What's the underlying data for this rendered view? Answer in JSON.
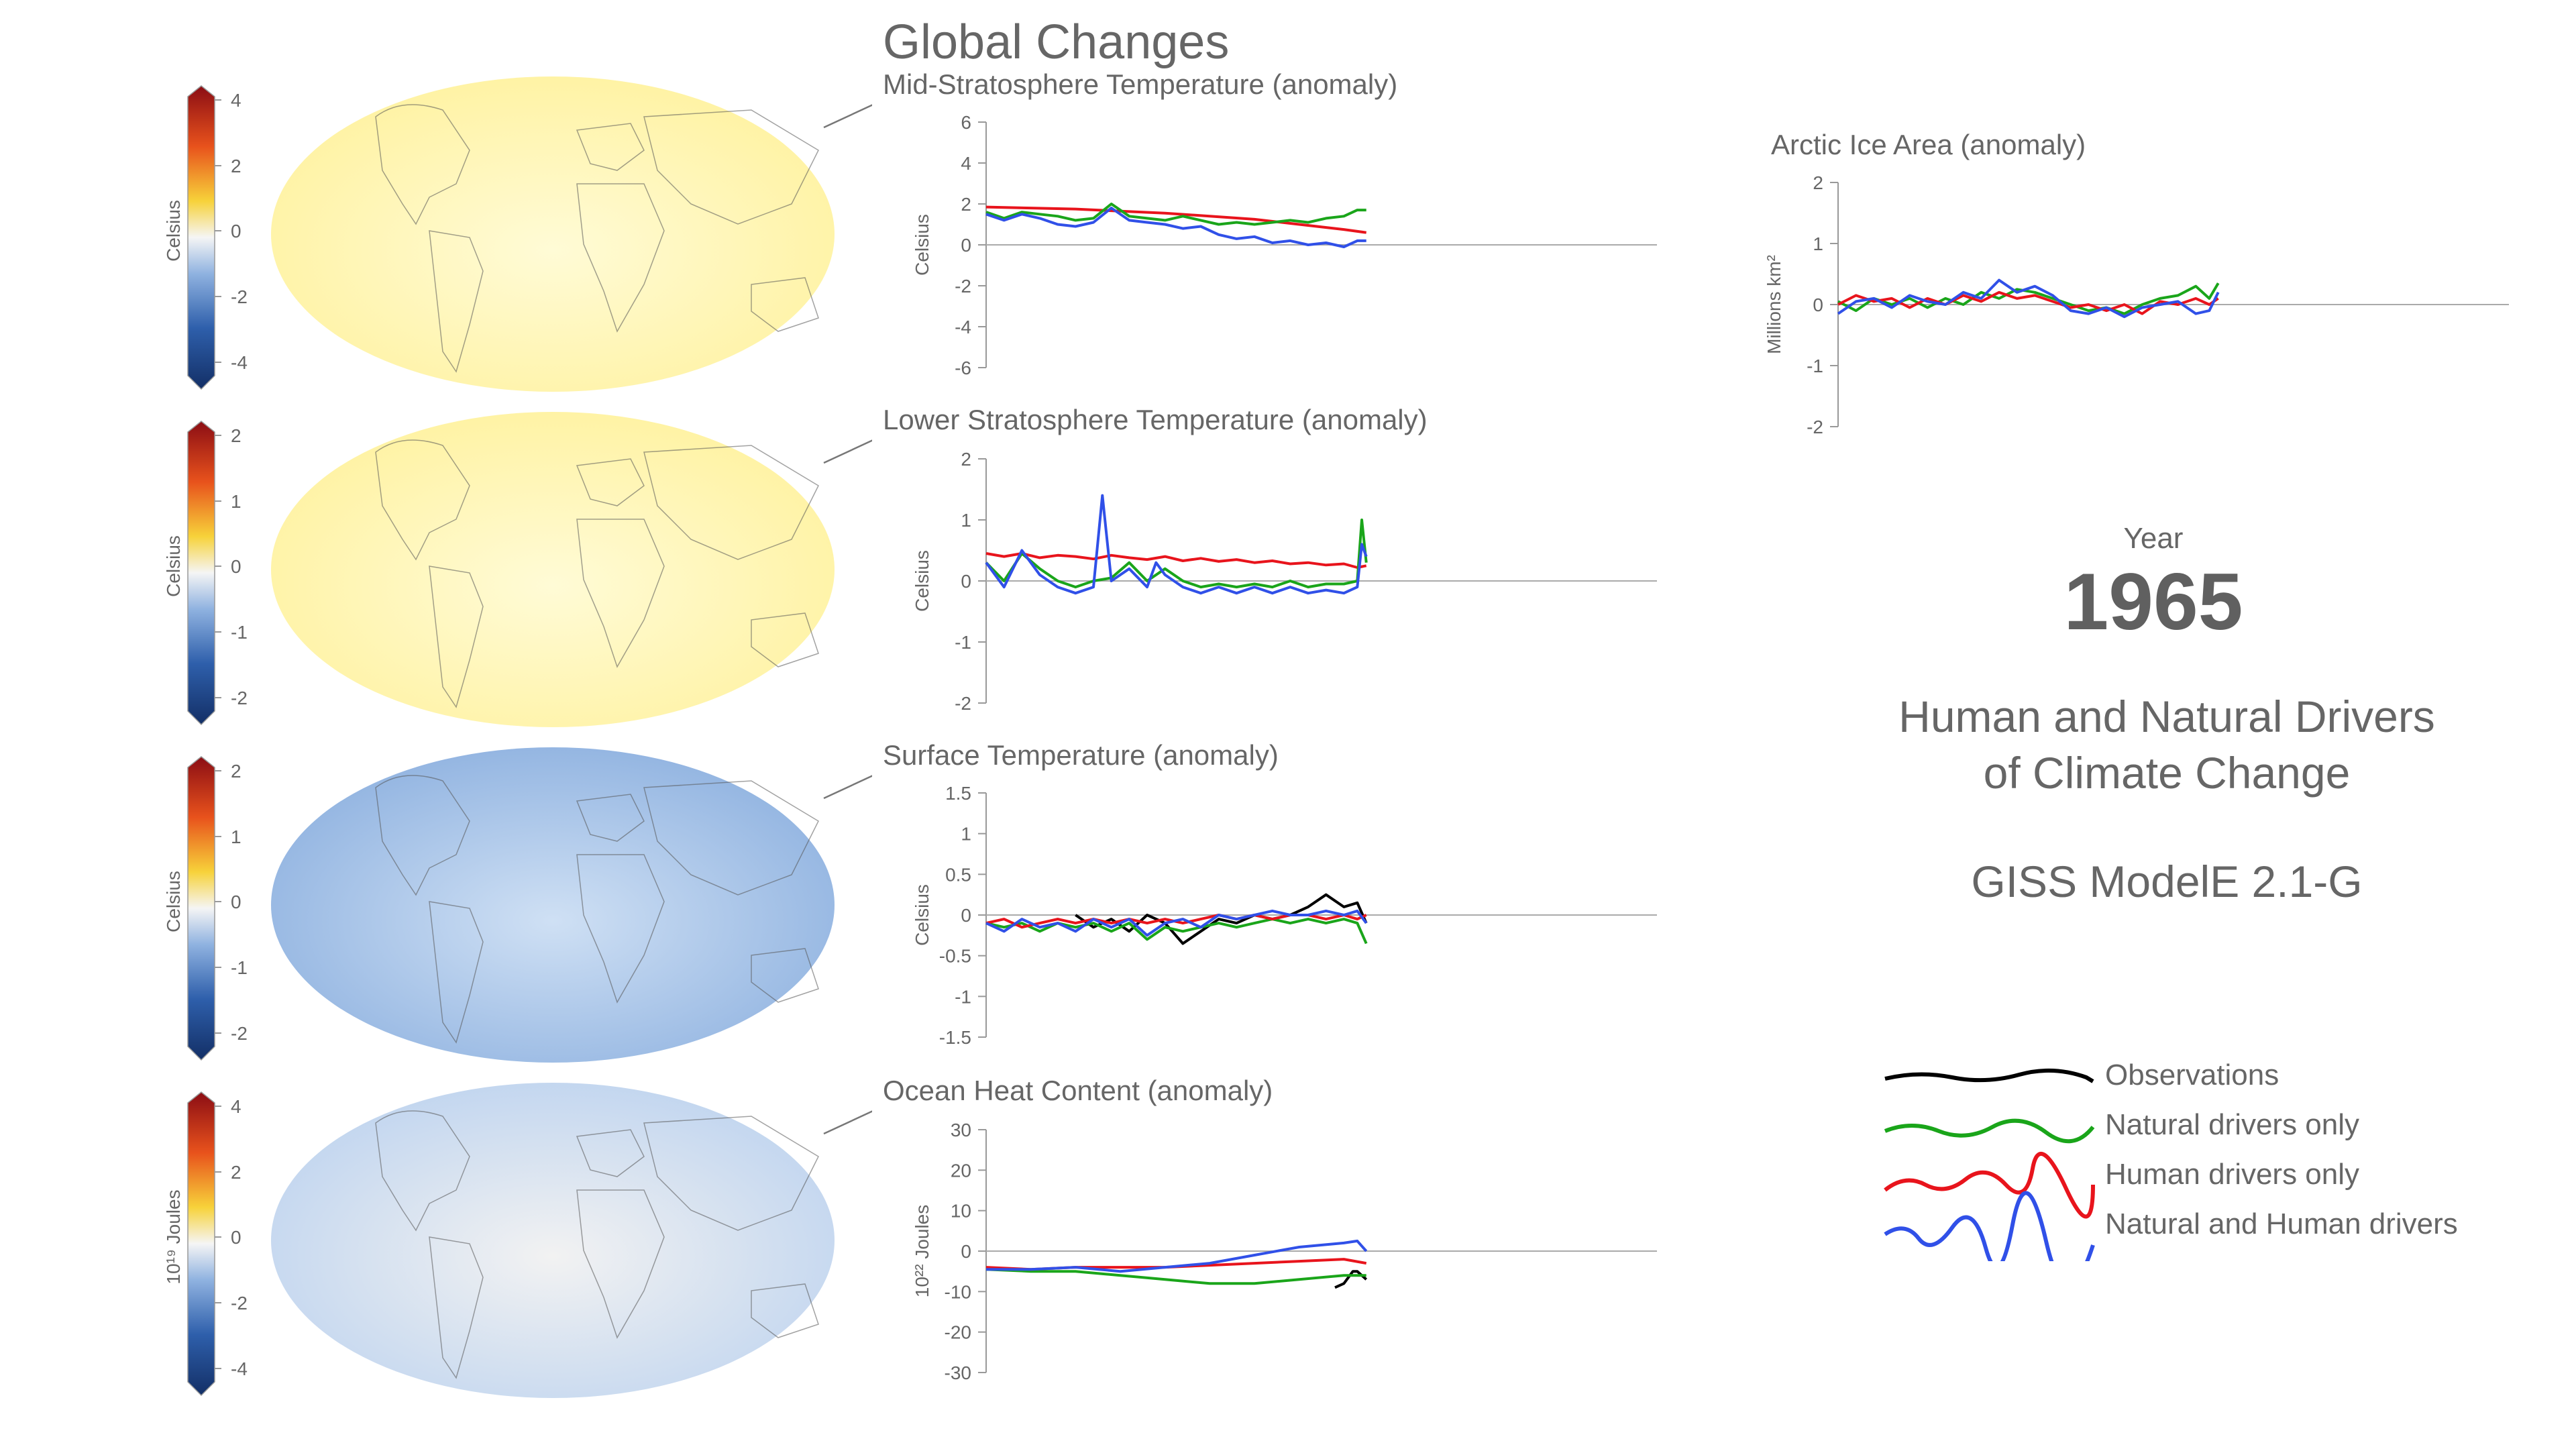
{
  "page_title": "Global Changes",
  "year_label": "Year",
  "year_value": "1965",
  "subtitle_line1": "Human and Natural Drivers",
  "subtitle_line2": "of Climate Change",
  "model_name": "GISS ModelE 2.1-G",
  "legend": [
    {
      "label": "Observations",
      "color": "#000000"
    },
    {
      "label": "Natural drivers only",
      "color": "#1aa51a"
    },
    {
      "label": "Human drivers only",
      "color": "#e8141c"
    },
    {
      "label": "Natural and Human drivers",
      "color": "#3050e8"
    }
  ],
  "maps": [
    {
      "colorbar_ticks": [
        "4",
        "2",
        "0",
        "-2",
        "-4"
      ],
      "colorbar_label": "Celsius",
      "anomaly": "warm"
    },
    {
      "colorbar_ticks": [
        "2",
        "1",
        "0",
        "-1",
        "-2"
      ],
      "colorbar_label": "Celsius",
      "anomaly": "warm"
    },
    {
      "colorbar_ticks": [
        "2",
        "1",
        "0",
        "-1",
        "-2"
      ],
      "colorbar_label": "Celsius",
      "anomaly": "cool"
    },
    {
      "colorbar_ticks": [
        "4",
        "2",
        "0",
        "-2",
        "-4"
      ],
      "colorbar_label": "10¹⁹ Joules",
      "anomaly": "mixed"
    }
  ],
  "chart_data": [
    {
      "type": "line",
      "title": "Mid-Stratosphere Temperature (anomaly)",
      "ylabel": "Celsius",
      "ylim": [
        -6,
        6
      ],
      "yticks": [
        "6",
        "4",
        "2",
        "0",
        "-2",
        "-4",
        "-6"
      ],
      "xlim": [
        1880,
        2030
      ],
      "series": [
        {
          "color": "#e8141c",
          "x": [
            1880,
            1890,
            1900,
            1910,
            1920,
            1930,
            1940,
            1950,
            1960,
            1965
          ],
          "y": [
            1.85,
            1.8,
            1.75,
            1.65,
            1.55,
            1.4,
            1.25,
            1.0,
            0.75,
            0.6
          ]
        },
        {
          "color": "#1aa51a",
          "x": [
            1880,
            1884,
            1888,
            1892,
            1896,
            1900,
            1904,
            1908,
            1912,
            1916,
            1920,
            1924,
            1928,
            1932,
            1936,
            1940,
            1944,
            1948,
            1952,
            1956,
            1960,
            1963,
            1965
          ],
          "y": [
            1.6,
            1.3,
            1.6,
            1.5,
            1.4,
            1.2,
            1.3,
            2.0,
            1.4,
            1.3,
            1.2,
            1.4,
            1.2,
            1.0,
            1.1,
            1.0,
            1.1,
            1.2,
            1.1,
            1.3,
            1.4,
            1.7,
            1.7
          ]
        },
        {
          "color": "#3050e8",
          "x": [
            1880,
            1884,
            1888,
            1892,
            1896,
            1900,
            1904,
            1908,
            1912,
            1916,
            1920,
            1924,
            1928,
            1932,
            1936,
            1940,
            1944,
            1948,
            1952,
            1956,
            1960,
            1963,
            1965
          ],
          "y": [
            1.5,
            1.2,
            1.5,
            1.3,
            1.0,
            0.9,
            1.1,
            1.8,
            1.2,
            1.1,
            1.0,
            0.8,
            0.9,
            0.5,
            0.3,
            0.4,
            0.1,
            0.2,
            0.0,
            0.1,
            -0.1,
            0.2,
            0.2
          ]
        }
      ]
    },
    {
      "type": "line",
      "title": "Lower Stratosphere Temperature (anomaly)",
      "ylabel": "Celsius",
      "ylim": [
        -2,
        2
      ],
      "yticks": [
        "2",
        "1",
        "0",
        "-1",
        "-2"
      ],
      "xlim": [
        1880,
        2030
      ],
      "series": [
        {
          "color": "#e8141c",
          "x": [
            1880,
            1884,
            1888,
            1892,
            1896,
            1900,
            1904,
            1908,
            1912,
            1916,
            1920,
            1924,
            1928,
            1932,
            1936,
            1940,
            1944,
            1948,
            1952,
            1956,
            1960,
            1963,
            1965
          ],
          "y": [
            0.45,
            0.4,
            0.45,
            0.38,
            0.42,
            0.4,
            0.36,
            0.42,
            0.38,
            0.35,
            0.4,
            0.33,
            0.37,
            0.32,
            0.35,
            0.3,
            0.33,
            0.28,
            0.3,
            0.26,
            0.28,
            0.22,
            0.25
          ]
        },
        {
          "color": "#1aa51a",
          "x": [
            1880,
            1884,
            1888,
            1892,
            1896,
            1900,
            1904,
            1908,
            1912,
            1916,
            1920,
            1924,
            1928,
            1932,
            1936,
            1940,
            1944,
            1948,
            1952,
            1956,
            1960,
            1963,
            1964,
            1965
          ],
          "y": [
            0.3,
            0.0,
            0.45,
            0.2,
            0.0,
            -0.1,
            0.0,
            0.05,
            0.3,
            0.0,
            0.2,
            0.0,
            -0.1,
            -0.05,
            -0.1,
            -0.05,
            -0.1,
            0.0,
            -0.1,
            -0.05,
            -0.05,
            0.0,
            1.0,
            0.3
          ]
        },
        {
          "color": "#3050e8",
          "x": [
            1880,
            1884,
            1888,
            1892,
            1896,
            1900,
            1904,
            1906,
            1908,
            1912,
            1916,
            1918,
            1920,
            1924,
            1928,
            1932,
            1936,
            1940,
            1944,
            1948,
            1952,
            1956,
            1960,
            1963,
            1964,
            1965
          ],
          "y": [
            0.3,
            -0.1,
            0.5,
            0.1,
            -0.1,
            -0.2,
            -0.1,
            1.4,
            0.0,
            0.2,
            -0.1,
            0.3,
            0.1,
            -0.1,
            -0.2,
            -0.1,
            -0.2,
            -0.1,
            -0.2,
            -0.1,
            -0.2,
            -0.15,
            -0.2,
            -0.1,
            0.6,
            0.4
          ]
        }
      ]
    },
    {
      "type": "line",
      "title": "Surface Temperature (anomaly)",
      "ylabel": "Celsius",
      "ylim": [
        -1.5,
        1.5
      ],
      "yticks": [
        "1.5",
        "1",
        "0.5",
        "0",
        "-0.5",
        "-1",
        "-1.5"
      ],
      "xlim": [
        1880,
        2030
      ],
      "series": [
        {
          "color": "#000000",
          "x": [
            1900,
            1904,
            1908,
            1912,
            1916,
            1920,
            1924,
            1928,
            1932,
            1936,
            1940,
            1944,
            1948,
            1952,
            1956,
            1960,
            1963,
            1965
          ],
          "y": [
            0.0,
            -0.15,
            -0.05,
            -0.2,
            0.0,
            -0.1,
            -0.35,
            -0.2,
            -0.05,
            -0.1,
            0.0,
            -0.05,
            0.0,
            0.1,
            0.25,
            0.1,
            0.15,
            -0.1
          ]
        },
        {
          "color": "#1aa51a",
          "x": [
            1880,
            1884,
            1888,
            1892,
            1896,
            1900,
            1904,
            1908,
            1912,
            1916,
            1920,
            1924,
            1928,
            1932,
            1936,
            1940,
            1944,
            1948,
            1952,
            1956,
            1960,
            1963,
            1965
          ],
          "y": [
            -0.1,
            -0.15,
            -0.1,
            -0.2,
            -0.1,
            -0.15,
            -0.1,
            -0.2,
            -0.1,
            -0.3,
            -0.15,
            -0.2,
            -0.15,
            -0.1,
            -0.15,
            -0.1,
            -0.05,
            -0.1,
            -0.05,
            -0.1,
            -0.05,
            -0.1,
            -0.35
          ]
        },
        {
          "color": "#e8141c",
          "x": [
            1880,
            1884,
            1888,
            1892,
            1896,
            1900,
            1904,
            1908,
            1912,
            1916,
            1920,
            1924,
            1928,
            1932,
            1936,
            1940,
            1944,
            1948,
            1952,
            1956,
            1960,
            1963,
            1965
          ],
          "y": [
            -0.1,
            -0.05,
            -0.15,
            -0.1,
            -0.05,
            -0.1,
            -0.05,
            -0.1,
            -0.05,
            -0.1,
            -0.05,
            -0.1,
            -0.05,
            0.0,
            -0.05,
            0.0,
            -0.05,
            0.0,
            0.0,
            -0.05,
            0.0,
            -0.05,
            0.0
          ]
        },
        {
          "color": "#3050e8",
          "x": [
            1880,
            1884,
            1888,
            1892,
            1896,
            1900,
            1904,
            1908,
            1912,
            1916,
            1920,
            1924,
            1928,
            1932,
            1936,
            1940,
            1944,
            1948,
            1952,
            1956,
            1960,
            1963,
            1965
          ],
          "y": [
            -0.1,
            -0.2,
            -0.05,
            -0.15,
            -0.1,
            -0.2,
            -0.05,
            -0.15,
            -0.05,
            -0.25,
            -0.1,
            -0.05,
            -0.15,
            0.0,
            -0.05,
            0.0,
            0.05,
            0.0,
            0.0,
            0.05,
            0.0,
            0.05,
            -0.1
          ]
        }
      ]
    },
    {
      "type": "line",
      "title": "Ocean Heat Content (anomaly)",
      "ylabel": "10²² Joules",
      "ylim": [
        -30,
        30
      ],
      "yticks": [
        "30",
        "20",
        "10",
        "0",
        "-10",
        "-20",
        "-30"
      ],
      "xlim": [
        1880,
        2030
      ],
      "series": [
        {
          "color": "#000000",
          "x": [
            1958,
            1960,
            1962,
            1963,
            1964,
            1965
          ],
          "y": [
            -9,
            -8,
            -5,
            -5,
            -6,
            -7
          ]
        },
        {
          "color": "#1aa51a",
          "x": [
            1880,
            1890,
            1900,
            1910,
            1920,
            1930,
            1940,
            1950,
            1960,
            1965
          ],
          "y": [
            -4.5,
            -5,
            -5,
            -6,
            -7,
            -8,
            -8,
            -7,
            -6,
            -6
          ]
        },
        {
          "color": "#e8141c",
          "x": [
            1880,
            1890,
            1900,
            1910,
            1920,
            1930,
            1940,
            1950,
            1960,
            1965
          ],
          "y": [
            -4,
            -4.5,
            -4,
            -4,
            -4,
            -3.5,
            -3,
            -2.5,
            -2,
            -3
          ]
        },
        {
          "color": "#3050e8",
          "x": [
            1880,
            1890,
            1900,
            1910,
            1920,
            1930,
            1940,
            1950,
            1960,
            1963,
            1965
          ],
          "y": [
            -4.5,
            -4.5,
            -4,
            -5,
            -4,
            -3,
            -1,
            1,
            2,
            2.5,
            0
          ]
        }
      ]
    },
    {
      "type": "line",
      "title": "Arctic Ice Area (anomaly)",
      "ylabel": "Millions km²",
      "ylim": [
        -2,
        2
      ],
      "yticks": [
        "2",
        "1",
        "0",
        "-1",
        "-2"
      ],
      "xlim": [
        1880,
        2030
      ],
      "series": [
        {
          "color": "#1aa51a",
          "x": [
            1880,
            1884,
            1888,
            1892,
            1896,
            1900,
            1904,
            1908,
            1912,
            1916,
            1920,
            1924,
            1928,
            1932,
            1936,
            1940,
            1944,
            1948,
            1952,
            1956,
            1960,
            1963,
            1965
          ],
          "y": [
            0.05,
            -0.1,
            0.1,
            0.0,
            0.1,
            -0.05,
            0.1,
            0.0,
            0.2,
            0.1,
            0.25,
            0.2,
            0.1,
            0.0,
            -0.1,
            -0.05,
            -0.15,
            0.0,
            0.1,
            0.15,
            0.3,
            0.1,
            0.35
          ]
        },
        {
          "color": "#e8141c",
          "x": [
            1880,
            1884,
            1888,
            1892,
            1896,
            1900,
            1904,
            1908,
            1912,
            1916,
            1920,
            1924,
            1928,
            1932,
            1936,
            1940,
            1944,
            1948,
            1952,
            1956,
            1960,
            1963,
            1965
          ],
          "y": [
            0.0,
            0.15,
            0.05,
            0.1,
            -0.05,
            0.1,
            0.0,
            0.15,
            0.05,
            0.2,
            0.1,
            0.15,
            0.05,
            -0.05,
            0.0,
            -0.1,
            0.0,
            -0.15,
            0.05,
            0.0,
            0.1,
            0.0,
            0.1
          ]
        },
        {
          "color": "#3050e8",
          "x": [
            1880,
            1884,
            1888,
            1892,
            1896,
            1900,
            1904,
            1908,
            1912,
            1916,
            1920,
            1924,
            1928,
            1932,
            1936,
            1940,
            1944,
            1948,
            1952,
            1956,
            1960,
            1963,
            1965
          ],
          "y": [
            -0.15,
            0.05,
            0.1,
            -0.05,
            0.15,
            0.05,
            0.0,
            0.2,
            0.1,
            0.4,
            0.2,
            0.3,
            0.15,
            -0.1,
            -0.15,
            -0.05,
            -0.2,
            -0.05,
            0.0,
            0.05,
            -0.15,
            -0.1,
            0.2
          ]
        }
      ]
    }
  ]
}
